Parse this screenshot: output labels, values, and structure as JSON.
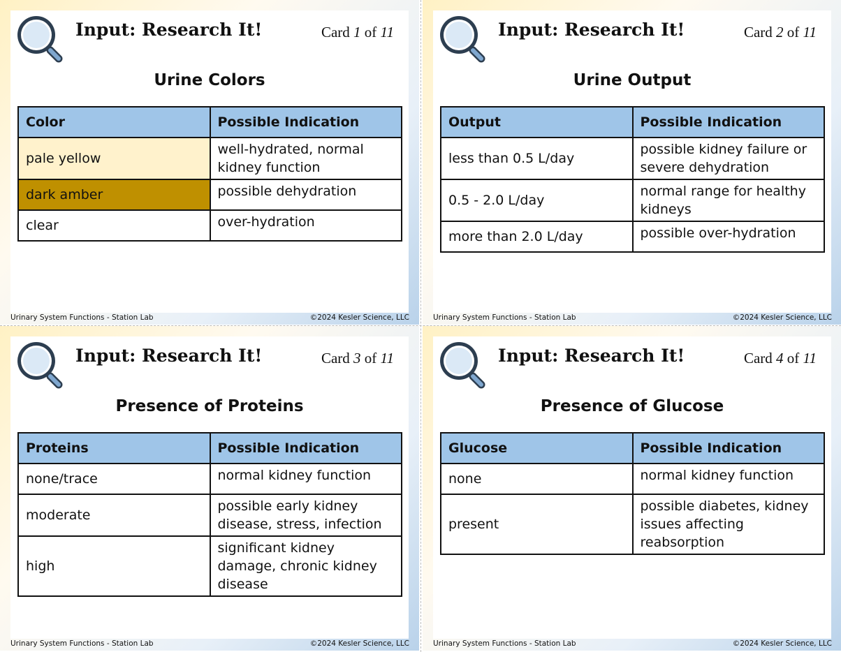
{
  "cards": [
    {
      "title": "Input: Research It!",
      "card_word": "Card",
      "number": 1,
      "of_word": "of",
      "total": 11,
      "heading": "Urine Colors",
      "columns": [
        "Color",
        "Possible Indication"
      ],
      "rows": [
        {
          "cells": [
            "pale yellow",
            "well-hydrated, normal kidney function"
          ],
          "color": "#fff2cc"
        },
        {
          "cells": [
            "dark amber",
            "possible dehydration"
          ],
          "color": "#bf9000"
        },
        {
          "cells": [
            "clear",
            "over-hydration"
          ]
        }
      ],
      "footer_left": "Urinary System Functions - Station Lab",
      "footer_right": "©2024 Kesler Science, LLC"
    },
    {
      "title": "Input: Research It!",
      "card_word": "Card",
      "number": 2,
      "of_word": "of",
      "total": 11,
      "heading": "Urine Output",
      "columns": [
        "Output",
        "Possible Indication"
      ],
      "rows": [
        {
          "cells": [
            "less than 0.5 L/day",
            "possible kidney failure or severe dehydration"
          ]
        },
        {
          "cells": [
            "0.5 - 2.0 L/day",
            "normal range for healthy kidneys"
          ]
        },
        {
          "cells": [
            "more than 2.0 L/day",
            "possible over-hydration"
          ]
        }
      ],
      "footer_left": "Urinary System Functions - Station Lab",
      "footer_right": "©2024 Kesler Science, LLC"
    },
    {
      "title": "Input: Research It!",
      "card_word": "Card",
      "number": 3,
      "of_word": "of",
      "total": 11,
      "heading": "Presence of Proteins",
      "columns": [
        "Proteins",
        "Possible Indication"
      ],
      "rows": [
        {
          "cells": [
            "none/trace",
            "normal kidney function"
          ]
        },
        {
          "cells": [
            "moderate",
            "possible early kidney disease, stress, infection"
          ]
        },
        {
          "cells": [
            "high",
            "significant kidney damage, chronic kidney disease"
          ]
        }
      ],
      "footer_left": "Urinary System Functions - Station Lab",
      "footer_right": "©2024 Kesler Science, LLC"
    },
    {
      "title": "Input: Research It!",
      "card_word": "Card",
      "number": 4,
      "of_word": "of",
      "total": 11,
      "heading": "Presence of Glucose",
      "columns": [
        "Glucose",
        "Possible Indication"
      ],
      "rows": [
        {
          "cells": [
            "none",
            "normal kidney function"
          ]
        },
        {
          "cells": [
            "present",
            "possible diabetes, kidney issues affecting reabsorption"
          ]
        }
      ],
      "footer_left": "Urinary System Functions - Station Lab",
      "footer_right": "©2024 Kesler Science, LLC"
    }
  ]
}
